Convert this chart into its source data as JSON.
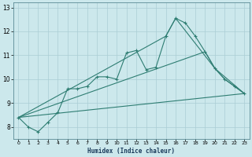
{
  "xlabel": "Humidex (Indice chaleur)",
  "background_color": "#cce8ec",
  "grid_color": "#aacdd4",
  "line_color": "#2e7d72",
  "xlim": [
    -0.5,
    23.5
  ],
  "ylim": [
    7.5,
    13.2
  ],
  "yticks": [
    8,
    9,
    10,
    11,
    12,
    13
  ],
  "xticks": [
    0,
    1,
    2,
    3,
    4,
    5,
    6,
    7,
    8,
    9,
    10,
    11,
    12,
    13,
    14,
    15,
    16,
    17,
    18,
    19,
    20,
    21,
    22,
    23
  ],
  "series_main": {
    "x": [
      0,
      1,
      2,
      3,
      4,
      5,
      6,
      7,
      8,
      9,
      10,
      11,
      12,
      13,
      14,
      15,
      16,
      17,
      18,
      19,
      20,
      21,
      22,
      23
    ],
    "y": [
      8.4,
      8.0,
      7.8,
      8.2,
      8.6,
      9.6,
      9.6,
      9.7,
      10.1,
      10.1,
      10.0,
      11.1,
      11.2,
      10.4,
      10.5,
      11.8,
      12.55,
      12.35,
      11.8,
      11.15,
      10.45,
      10.0,
      9.7,
      9.4
    ]
  },
  "fan_lines": [
    {
      "x": [
        0,
        23
      ],
      "y": [
        8.4,
        9.4
      ]
    },
    {
      "x": [
        0,
        19,
        20,
        23
      ],
      "y": [
        8.4,
        11.15,
        10.45,
        9.4
      ]
    },
    {
      "x": [
        0,
        15,
        16,
        20,
        21,
        23
      ],
      "y": [
        8.4,
        11.8,
        12.55,
        10.45,
        10.0,
        9.4
      ]
    }
  ]
}
